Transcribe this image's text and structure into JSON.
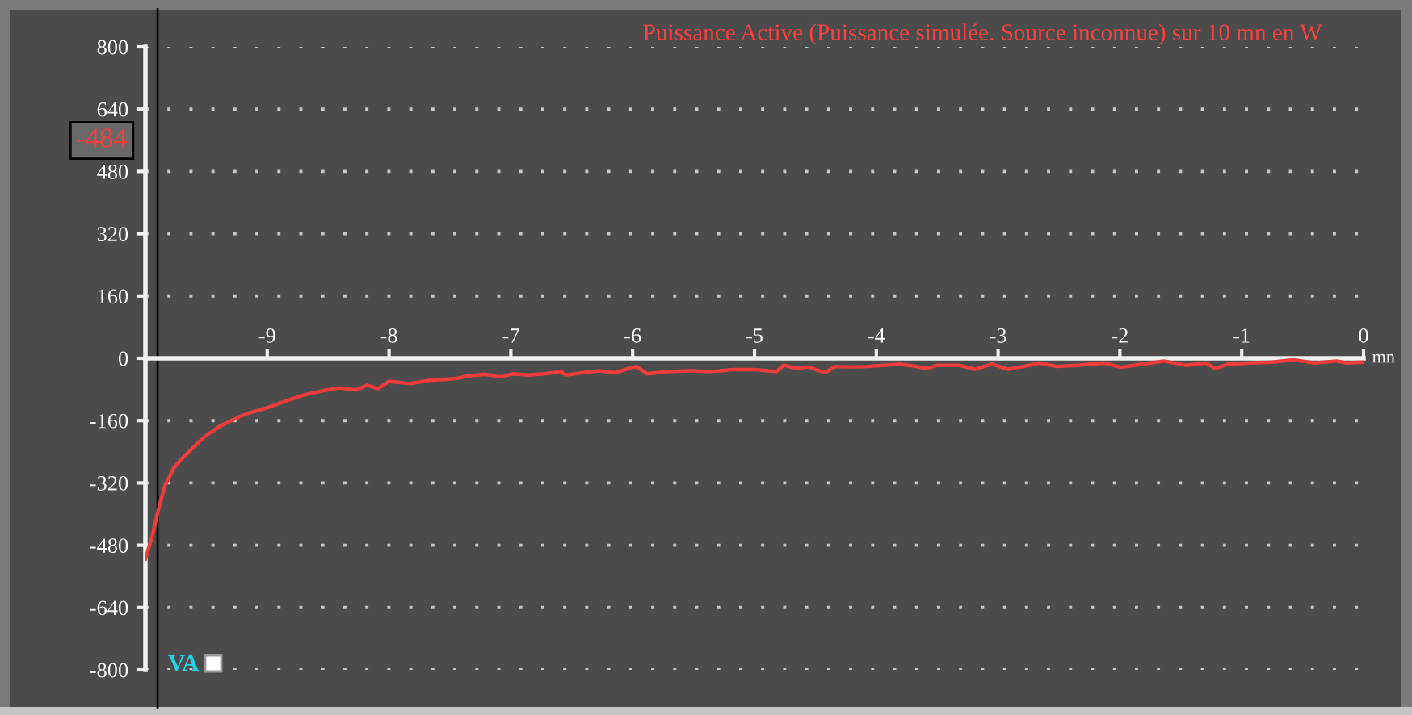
{
  "chart_data": {
    "type": "line",
    "title": "Puissance Active (Puissance simulée. Source inconnue) sur 10 mn en W",
    "xlabel": "mn",
    "x": [
      -10.0,
      -9.94,
      -9.9,
      -9.84,
      -9.77,
      -9.71,
      -9.62,
      -9.51,
      -9.38,
      -9.29,
      -9.16,
      -9.0,
      -8.84,
      -8.71,
      -8.54,
      -8.4,
      -8.27,
      -8.18,
      -8.09,
      -8.0,
      -7.83,
      -7.65,
      -7.47,
      -7.34,
      -7.21,
      -7.08,
      -6.99,
      -6.86,
      -6.72,
      -6.59,
      -6.55,
      -6.41,
      -6.28,
      -6.15,
      -6.06,
      -5.97,
      -5.88,
      -5.71,
      -5.53,
      -5.35,
      -5.18,
      -5.0,
      -4.82,
      -4.76,
      -4.65,
      -4.56,
      -4.42,
      -4.34,
      -4.2,
      -4.07,
      -3.94,
      -3.81,
      -3.67,
      -3.59,
      -3.5,
      -3.32,
      -3.19,
      -3.05,
      -2.92,
      -2.79,
      -2.66,
      -2.52,
      -2.35,
      -2.13,
      -1.99,
      -1.82,
      -1.64,
      -1.46,
      -1.29,
      -1.22,
      -1.11,
      -0.93,
      -0.75,
      -0.58,
      -0.4,
      -0.22,
      -0.14,
      0.0
    ],
    "series": [
      {
        "color": "#f23c3c",
        "values": [
          -515,
          -452,
          -397,
          -327,
          -283,
          -261,
          -233,
          -200,
          -173,
          -159,
          -141,
          -127,
          -109,
          -95,
          -83,
          -76,
          -81,
          -69,
          -78,
          -59,
          -65,
          -56,
          -53,
          -45,
          -41,
          -48,
          -40,
          -43,
          -40,
          -34,
          -43,
          -37,
          -32,
          -37,
          -29,
          -21,
          -40,
          -34,
          -32,
          -34,
          -29,
          -29,
          -34,
          -18,
          -26,
          -22,
          -37,
          -21,
          -22,
          -21,
          -18,
          -15,
          -21,
          -26,
          -18,
          -18,
          -28,
          -15,
          -28,
          -21,
          -12,
          -21,
          -18,
          -12,
          -23,
          -15,
          -7,
          -18,
          -12,
          -26,
          -15,
          -12,
          -10,
          -4,
          -12,
          -7,
          -12,
          -10
        ]
      }
    ],
    "xlim": [
      -10,
      0
    ],
    "xticks": [
      -9,
      -8,
      -7,
      -6,
      -5,
      -4,
      -3,
      -2,
      -1,
      0
    ],
    "ylim": [
      -800,
      800
    ],
    "yticks": [
      -800,
      -640,
      -480,
      -320,
      -160,
      0,
      160,
      320,
      480,
      640,
      800
    ],
    "grid": "y",
    "marker": "none",
    "line_style": "solid",
    "ref_lines": [
      {
        "axis": "x",
        "value": -9.9,
        "color": "#000000"
      }
    ],
    "annotations": [
      "-484",
      "VA"
    ]
  }
}
